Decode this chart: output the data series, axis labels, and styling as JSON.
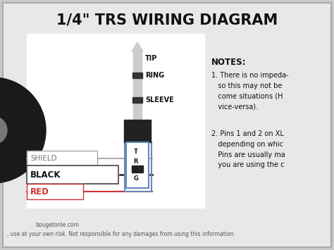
{
  "title": "1/4\" TRS WIRING DIAGRAM",
  "bg_color": "#c8c8c8",
  "inner_bg": "#e8e8e8",
  "title_color": "#111111",
  "title_fontsize": 15,
  "notes_title": "NOTES:",
  "note1": "1. There is no impeda-\n   so this may not be\n   come situations (H\n   vice-versa).",
  "note2": "2. Pins 1 and 2 on XL\n   depending on whic\n   Pins are usually ma\n   you are using the c",
  "labels_plug": [
    "TIP",
    "RING",
    "SLEEVE"
  ],
  "shield_label": "SHIELD",
  "black_label": "BLACK",
  "red_label": "RED",
  "footer1": "bougetonle.com",
  "footer2": ", use at your own risk. Not responsible for any damages from using this information.",
  "plug_color": "#cccccc",
  "plug_dark": "#333333",
  "connector_dark": "#222222",
  "blue_color": "#6688bb",
  "red_color": "#cc3333",
  "black_color": "#111111",
  "white_color": "#ffffff",
  "shield_color": "#aaaaaa",
  "gray_text": "#777777",
  "dark_gray": "#555555"
}
